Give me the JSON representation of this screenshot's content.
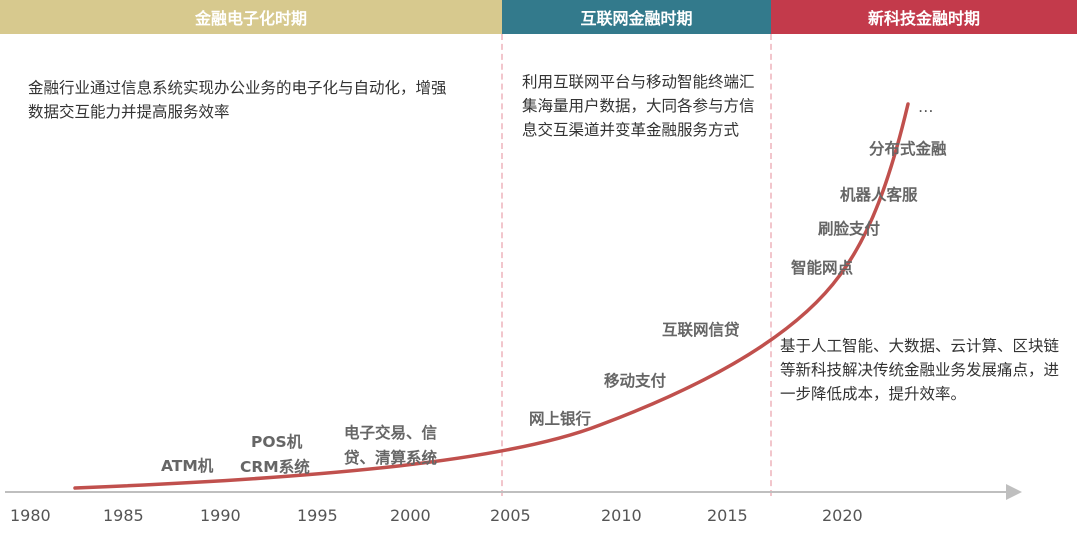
{
  "periods": [
    {
      "label": "金融电子化时期",
      "color": "#d7c98e"
    },
    {
      "label": "互联网金融时期",
      "color": "#337a8c"
    },
    {
      "label": "新科技金融时期",
      "color": "#c33a4b"
    }
  ],
  "descriptions": [
    "金融行业通过信息系统实现办公业务的电子化与自动化，增强数据交互能力并提高服务效率",
    "利用互联网平台与移动智能终端汇集海量用户数据，大同各参与方信息交互渠道并变革金融服务方式",
    "基于人工智能、大数据、云计算、区块链等新科技解决传统金融业务发展痛点，进一步降低成本，提升效率。"
  ],
  "technologies": {
    "atm": "ATM机",
    "pos": "POS机",
    "crm": "CRM系统",
    "etrade_1": "电子交易、信",
    "etrade_2": "贷、清算系统",
    "online_bank": "网上银行",
    "mobile_pay": "移动支付",
    "internet_credit": "互联网信贷",
    "smart_branch": "智能网点",
    "face_pay": "刷脸支付",
    "robot_service": "机器人客服",
    "distributed_finance": "分布式金融",
    "ellipsis": "…"
  },
  "years": [
    "1980",
    "1985",
    "1990",
    "1995",
    "2000",
    "2005",
    "2010",
    "2015",
    "2020"
  ],
  "colors": {
    "curve": "#c0504d",
    "axis": "#bfbfbf"
  }
}
